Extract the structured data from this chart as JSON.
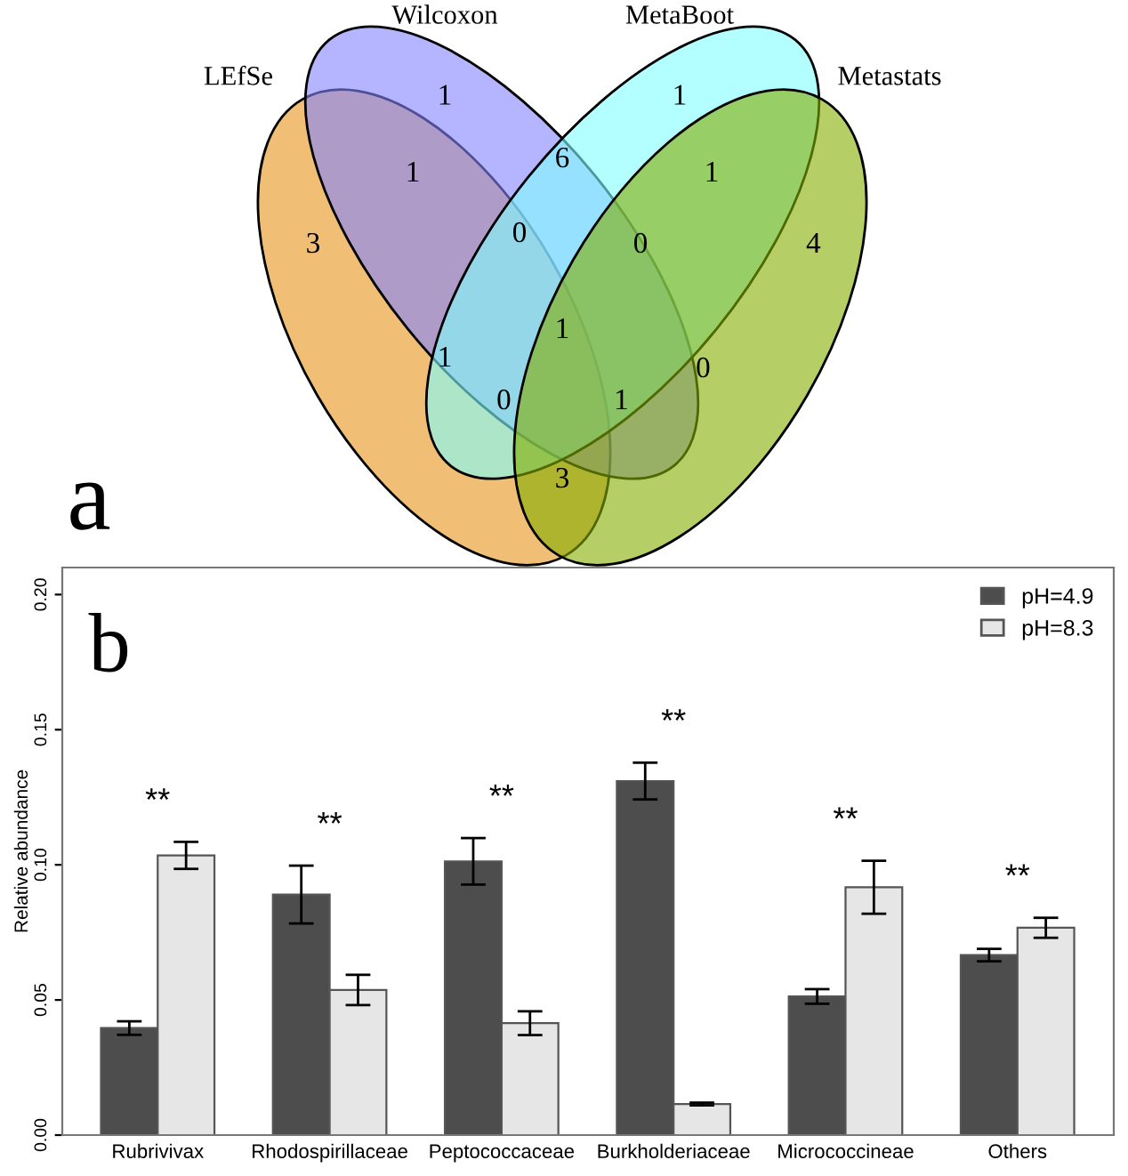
{
  "chart_data": [
    {
      "type": "other",
      "categories": [
        "LEfSe",
        "Wilcoxon",
        "MetaBoot",
        "Metastats"
      ],
      "colors": [
        "#e8921a",
        "#8484ff",
        "#80ffff",
        "#84ae00"
      ],
      "annotations": [
        "a",
        "1",
        "1",
        "6",
        "1",
        "1",
        "3",
        "0",
        "0",
        "4",
        "1",
        "1",
        "0",
        "0",
        "1",
        "3"
      ]
    },
    {
      "type": "bar",
      "categories": [
        "Rubrivivax",
        "Rhodospirillaceae",
        "Peptococcaceae",
        "Burkholderiaceae",
        "Micrococcineae",
        "Others"
      ],
      "series": [
        {
          "name": "pH=4.9",
          "color": "#4d4d4d",
          "values": [
            0.0396,
            0.089,
            0.1013,
            0.131,
            0.0513,
            0.0666
          ],
          "errors": [
            0.0025,
            0.0107,
            0.0086,
            0.0068,
            0.0027,
            0.0023
          ]
        },
        {
          "name": "pH=8.3",
          "color": "#e6e6e6",
          "values": [
            0.1035,
            0.0537,
            0.0414,
            0.0115,
            0.0917,
            0.0767
          ],
          "errors": [
            0.005,
            0.0056,
            0.0044,
            0.0005,
            0.0098,
            0.0037
          ]
        }
      ],
      "ylabel": "Relative abundance",
      "ylim": [
        0,
        0.21
      ],
      "yticks": [
        {
          "value": 0,
          "label": "0.00"
        },
        {
          "value": 0.05,
          "label": "0.05"
        },
        {
          "value": 0.1,
          "label": "0.10"
        },
        {
          "value": 0.15,
          "label": "0.15"
        },
        {
          "value": 0.2,
          "label": "0.20"
        }
      ],
      "legend": "top right",
      "annotations": [
        "b",
        "**",
        "**",
        "**",
        "**",
        "**",
        "**"
      ]
    }
  ]
}
